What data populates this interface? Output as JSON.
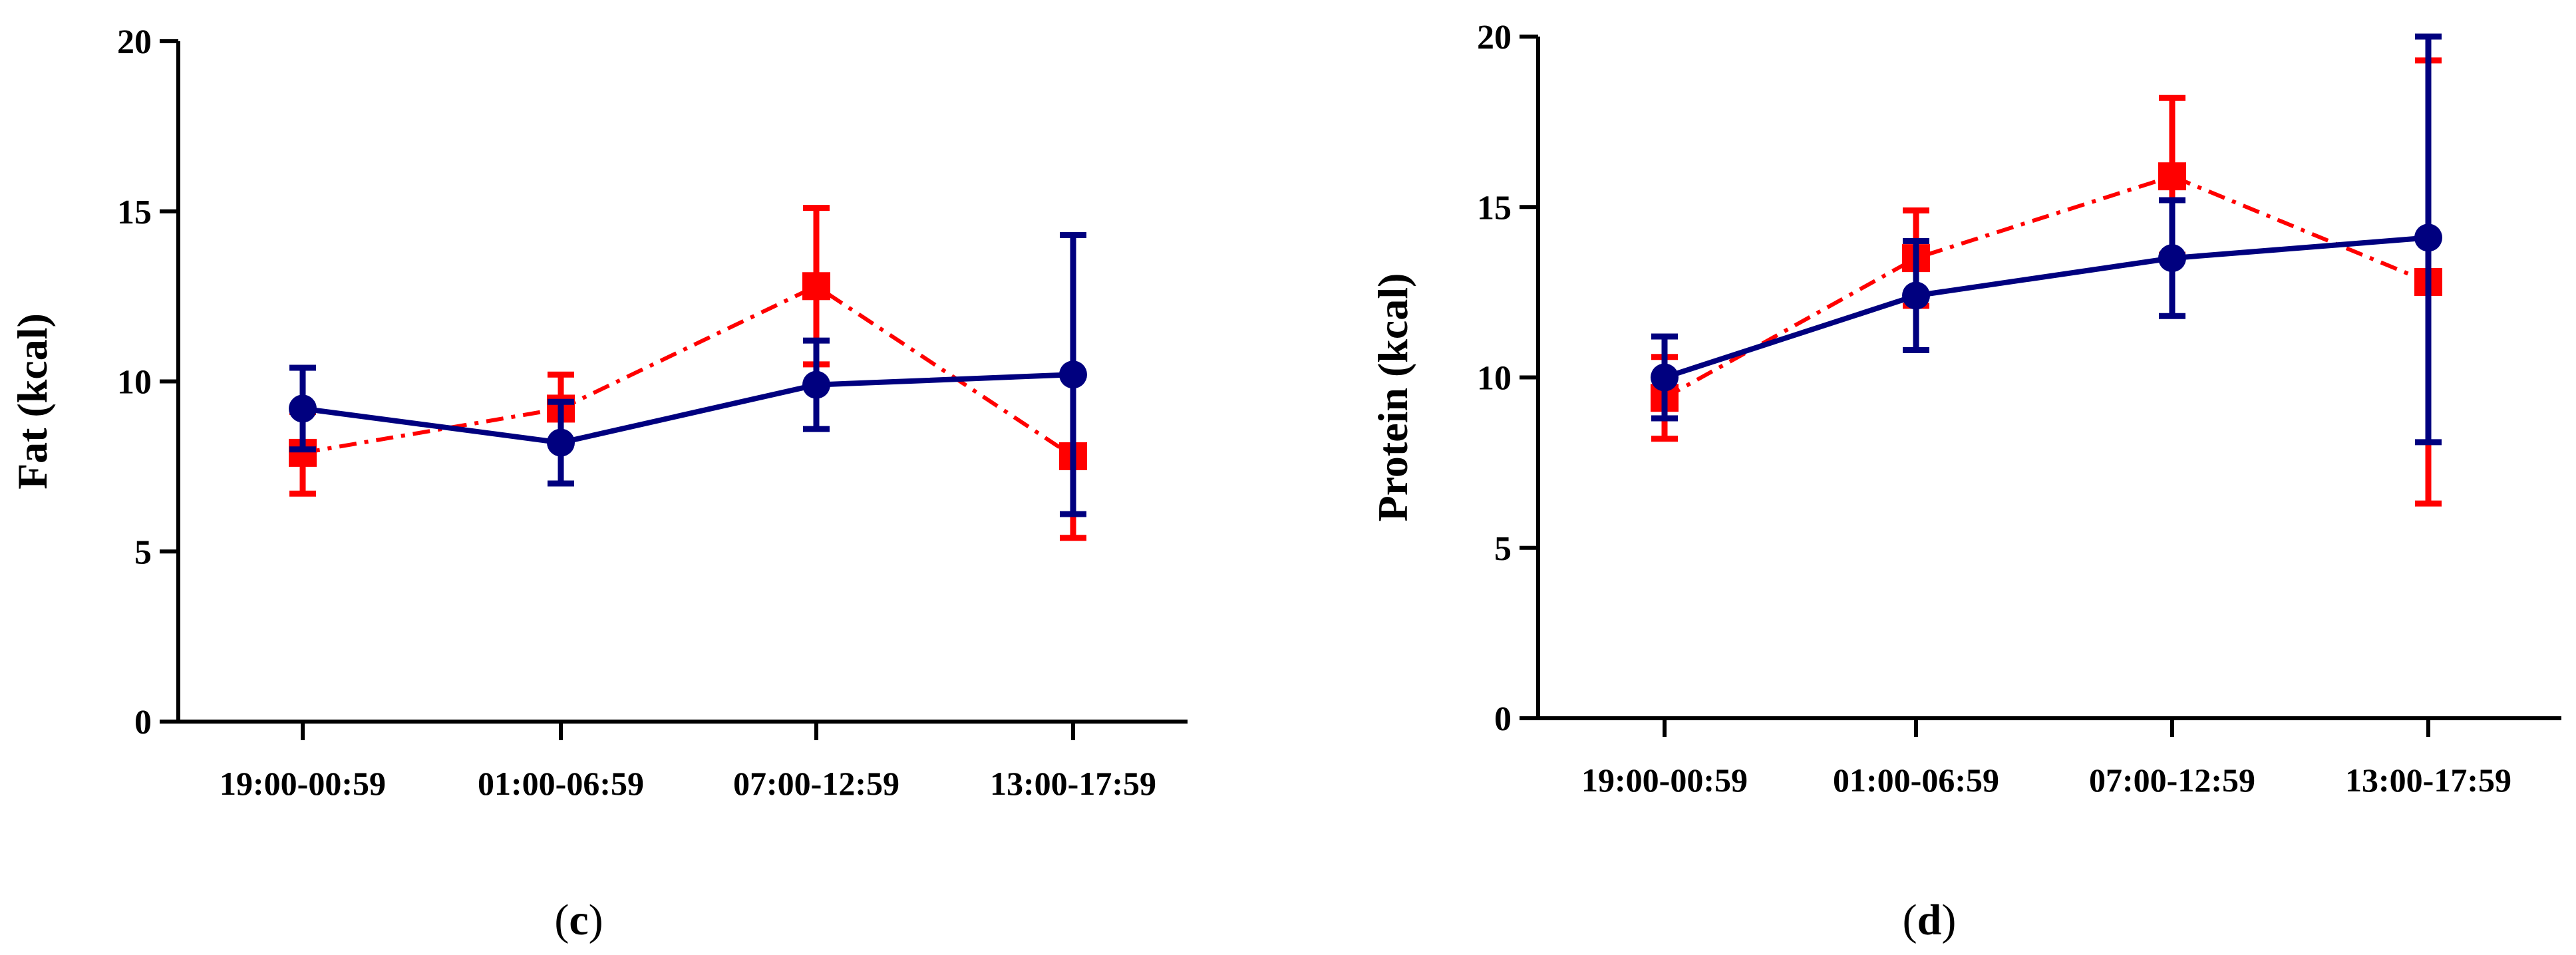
{
  "chart_data": [
    {
      "type": "line",
      "panel_label": "c",
      "ylabel": "Fat (kcal)",
      "ylim": [
        0,
        20
      ],
      "yticks": [
        "0",
        "5",
        "10",
        "15",
        "20"
      ],
      "categories": [
        "19:00-00:59",
        "01:00-06:59",
        "07:00-12:59",
        "13:00-17:59"
      ],
      "grid": false,
      "series": [
        {
          "color": "#ff0000",
          "marker": "square",
          "line_style": "dash-dot",
          "values": [
            7.9,
            9.2,
            12.8,
            7.8
          ],
          "error": [
            1.2,
            1.0,
            2.3,
            2.4
          ]
        },
        {
          "color": "#00007f",
          "marker": "circle",
          "line_style": "solid",
          "values": [
            9.2,
            8.2,
            9.9,
            10.2
          ],
          "error": [
            1.2,
            1.2,
            1.3,
            4.1
          ]
        }
      ]
    },
    {
      "type": "line",
      "panel_label": "d",
      "ylabel": "Protein (kcal)",
      "ylim": [
        0,
        20
      ],
      "yticks": [
        "0",
        "5",
        "10",
        "15",
        "20"
      ],
      "categories": [
        "19:00-00:59",
        "01:00-06:59",
        "07:00-12:59",
        "13:00-17:59"
      ],
      "grid": false,
      "series": [
        {
          "color": "#ff0000",
          "marker": "square",
          "line_style": "dash-dot",
          "values": [
            9.4,
            13.5,
            15.9,
            12.8
          ],
          "error": [
            1.2,
            1.4,
            2.3,
            6.5
          ]
        },
        {
          "color": "#00007f",
          "marker": "circle",
          "line_style": "solid",
          "values": [
            10.0,
            12.4,
            13.5,
            14.1
          ],
          "error": [
            1.2,
            1.6,
            1.7,
            6.0
          ]
        }
      ]
    }
  ]
}
